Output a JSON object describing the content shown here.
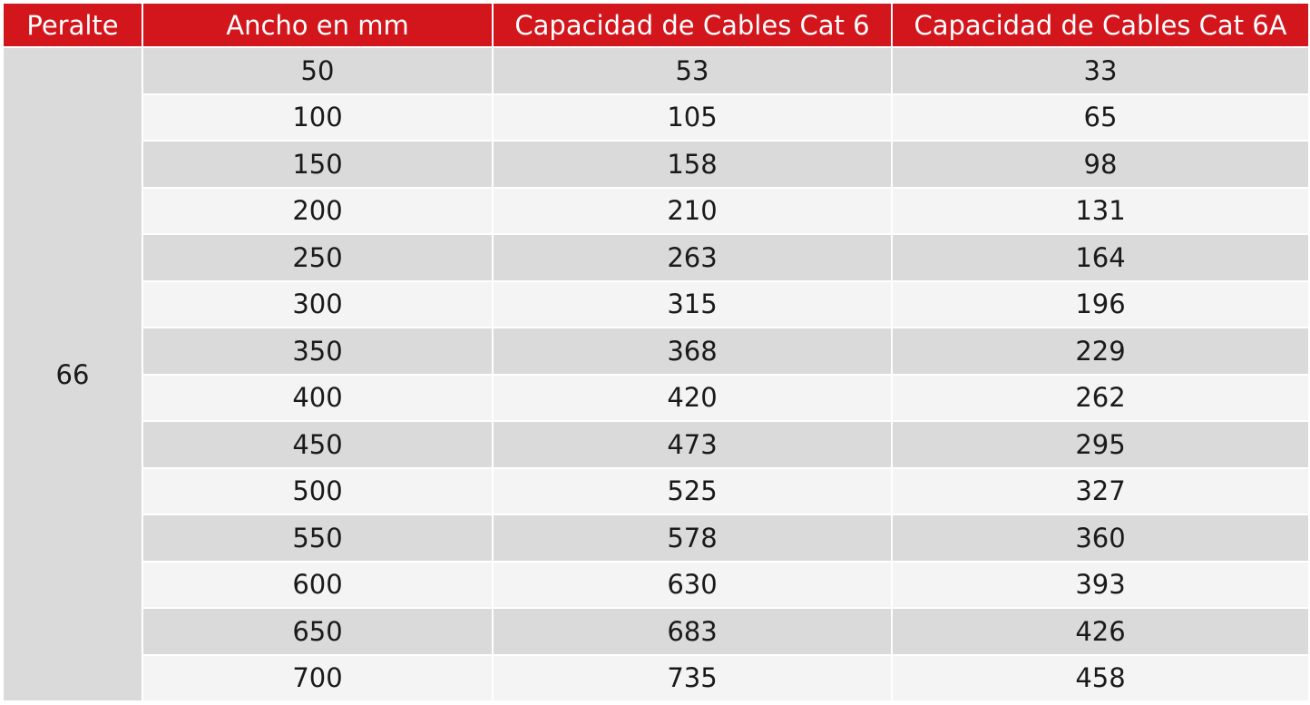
{
  "table": {
    "headers": [
      "Peralte",
      "Ancho en mm",
      "Capacidad de Cables Cat 6",
      "Capacidad de Cables Cat 6A"
    ],
    "peralte": "66",
    "rows": [
      [
        "50",
        "53",
        "33"
      ],
      [
        "100",
        "105",
        "65"
      ],
      [
        "150",
        "158",
        "98"
      ],
      [
        "200",
        "210",
        "131"
      ],
      [
        "250",
        "263",
        "164"
      ],
      [
        "300",
        "315",
        "196"
      ],
      [
        "350",
        "368",
        "229"
      ],
      [
        "400",
        "420",
        "262"
      ],
      [
        "450",
        "473",
        "295"
      ],
      [
        "500",
        "525",
        "327"
      ],
      [
        "550",
        "578",
        "360"
      ],
      [
        "600",
        "630",
        "393"
      ],
      [
        "650",
        "683",
        "426"
      ],
      [
        "700",
        "735",
        "458"
      ]
    ]
  },
  "colors": {
    "header_bg": "#d3151c",
    "header_text": "#ffffff",
    "row_dark": "#dadada",
    "row_light": "#f4f4f4"
  }
}
